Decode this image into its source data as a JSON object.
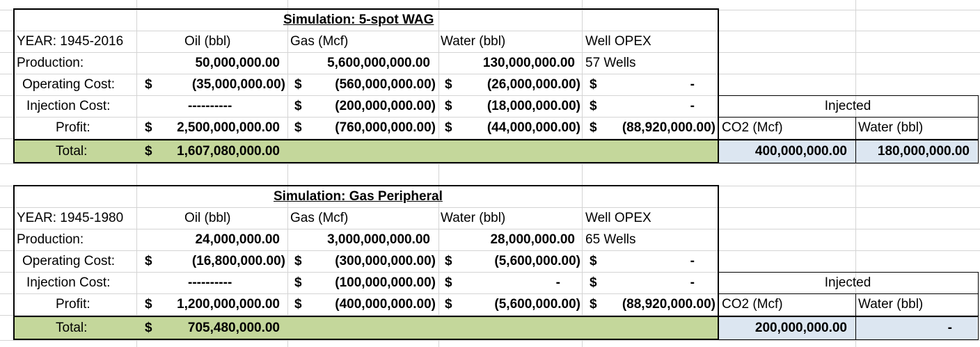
{
  "tables": [
    {
      "title": "Simulation: 5-spot WAG",
      "year": "YEAR: 1945-2016",
      "headers": {
        "oil": "Oil (bbl)",
        "gas": "Gas (Mcf)",
        "water": "Water (bbl)",
        "opex": "Well OPEX"
      },
      "production": {
        "label": "Production:",
        "oil": "50,000,000.00",
        "gas": "5,600,000,000.00",
        "water": "130,000,000.00",
        "opex": "57 Wells"
      },
      "operating": {
        "label": "Operating Cost:",
        "oil": "(35,000,000.00)",
        "gas": "(560,000,000.00)",
        "water": "(26,000,000.00)",
        "opex": "-"
      },
      "injection": {
        "label": "Injection Cost:",
        "oil": "----------",
        "gas": "(200,000,000.00)",
        "water": "(18,000,000.00)",
        "opex": "-"
      },
      "profit": {
        "label": "Profit:",
        "oil": "2,500,000,000.00",
        "gas": "(760,000,000.00)",
        "water": "(44,000,000.00)",
        "opex": "(88,920,000.00)"
      },
      "total": {
        "label": "Total:",
        "value": "1,607,080,000.00"
      },
      "injected": {
        "header": "Injected",
        "co2_label": "CO2 (Mcf)",
        "water_label": "Water (bbl)",
        "co2": "400,000,000.00",
        "water": "180,000,000.00"
      }
    },
    {
      "title": "Simulation: Gas Peripheral",
      "year": "YEAR: 1945-1980",
      "headers": {
        "oil": "Oil (bbl)",
        "gas": "Gas (Mcf)",
        "water": "Water (bbl)",
        "opex": "Well OPEX"
      },
      "production": {
        "label": "Production:",
        "oil": "24,000,000.00",
        "gas": "3,000,000,000.00",
        "water": "28,000,000.00",
        "opex": "65 Wells"
      },
      "operating": {
        "label": "Operating Cost:",
        "oil": "(16,800,000.00)",
        "gas": "(300,000,000.00)",
        "water": "(5,600,000.00)",
        "opex": "-"
      },
      "injection": {
        "label": "Injection Cost:",
        "oil": "----------",
        "gas": "(100,000,000.00)",
        "water": "-",
        "opex": "-"
      },
      "profit": {
        "label": "Profit:",
        "oil": "1,200,000,000.00",
        "gas": "(400,000,000.00)",
        "water": "(5,600,000.00)",
        "opex": "(88,920,000.00)"
      },
      "total": {
        "label": "Total:",
        "value": "705,480,000.00"
      },
      "injected": {
        "header": "Injected",
        "co2_label": "CO2 (Mcf)",
        "water_label": "Water (bbl)",
        "co2": "200,000,000.00",
        "water": "-"
      }
    }
  ],
  "currency": "$",
  "colors": {
    "total_row": "#c4d79b",
    "injected_values": "#dce6f1",
    "gridline": "#d4d4d4"
  }
}
